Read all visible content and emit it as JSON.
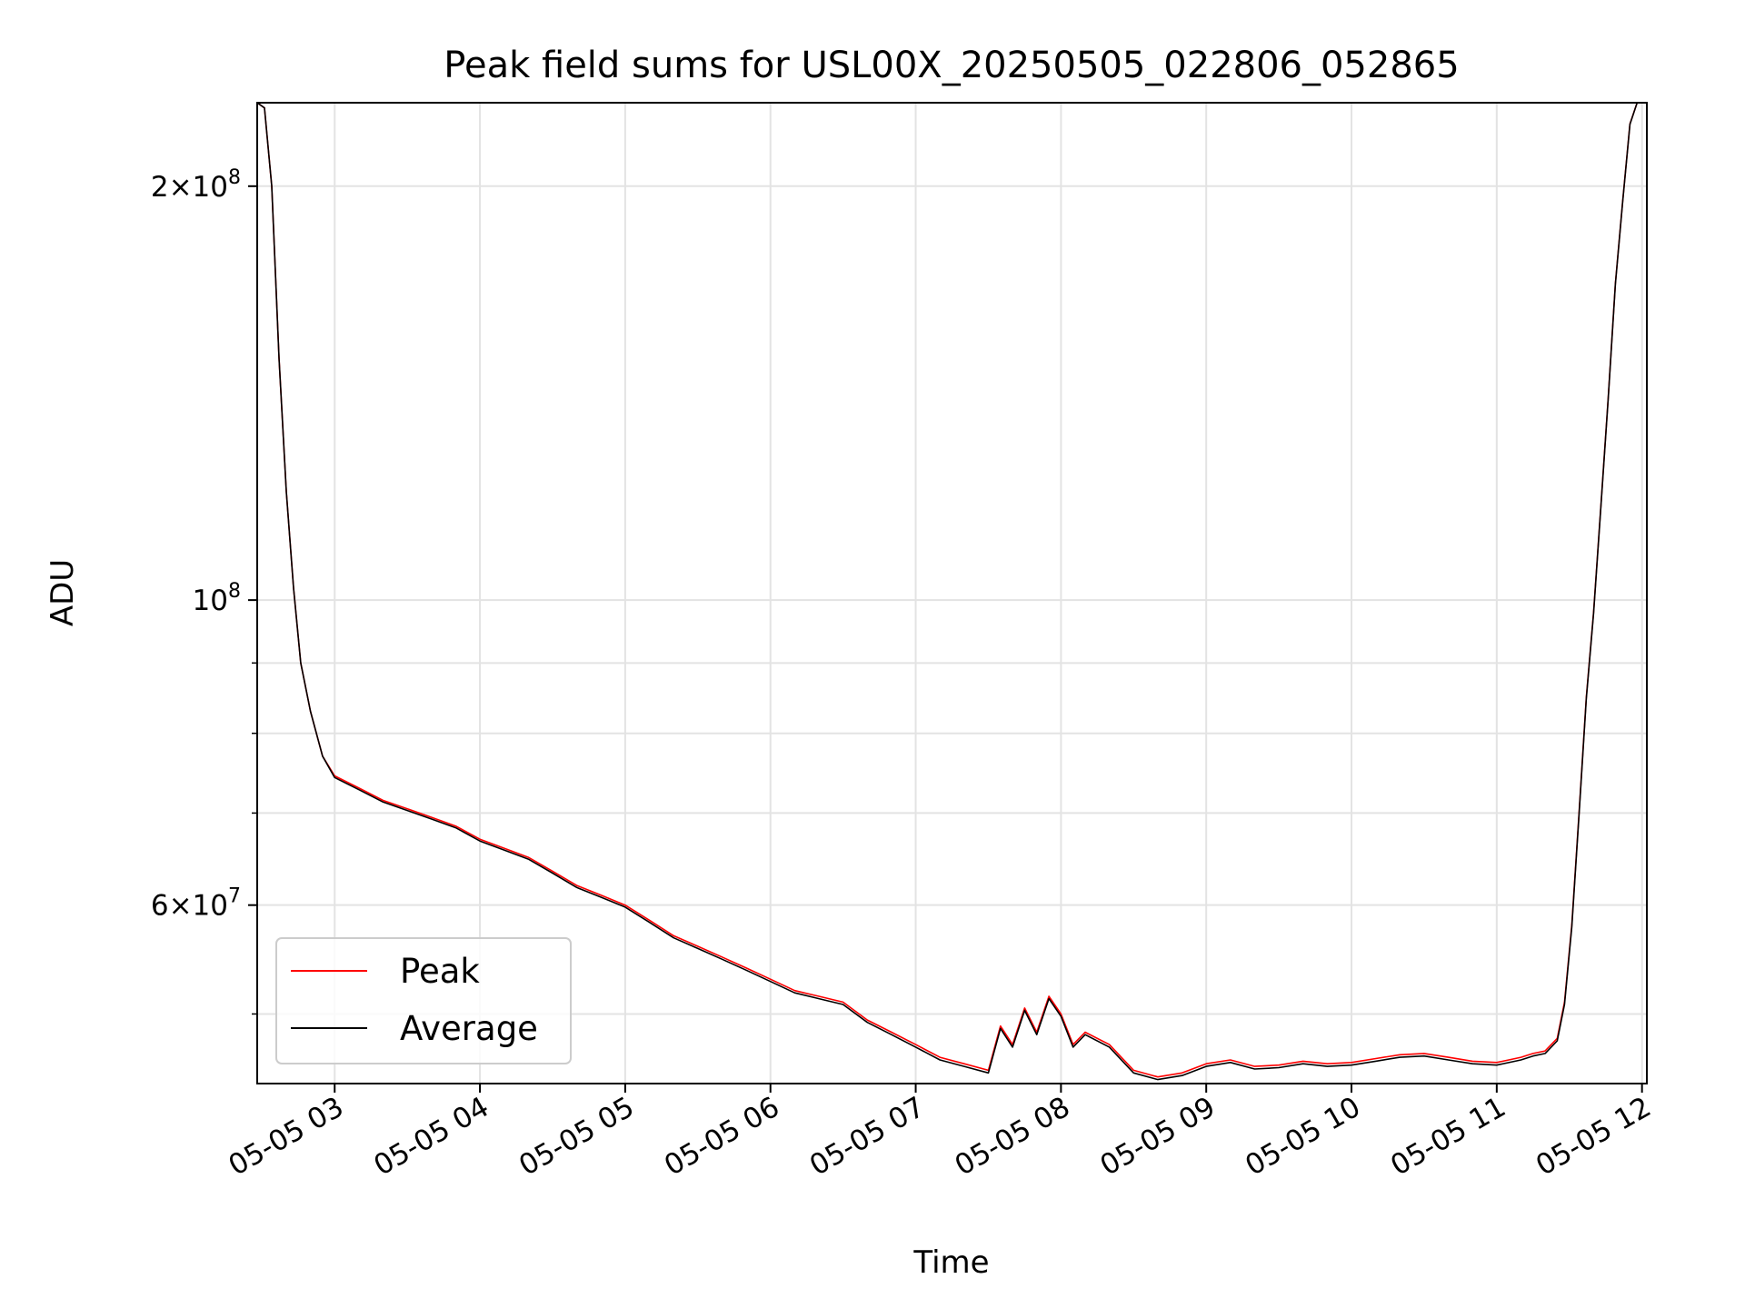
{
  "chart_data": {
    "type": "line",
    "title": "Peak field sums for USL00X_20250505_022806_052865",
    "xlabel": "Time",
    "ylabel": "ADU",
    "yscale": "log",
    "xlim": [
      "05-05 02:28",
      "05-05 12:02"
    ],
    "ylim": [
      44500000,
      230000000
    ],
    "grid": true,
    "legend_position": "lower-left",
    "x_ticks": [
      "05-05 03",
      "05-05 04",
      "05-05 05",
      "05-05 06",
      "05-05 07",
      "05-05 08",
      "05-05 09",
      "05-05 10",
      "05-05 11",
      "05-05 12"
    ],
    "y_ticks": [
      {
        "value": 60000000,
        "mantissa": "6",
        "base": "10",
        "exp": "7"
      },
      {
        "value": 100000000,
        "mantissa": "",
        "base": "10",
        "exp": "8"
      },
      {
        "value": 200000000,
        "mantissa": "2",
        "base": "10",
        "exp": "8"
      }
    ],
    "y_minor_ticks": [
      50000000,
      70000000,
      80000000,
      90000000
    ],
    "series": [
      {
        "name": "Peak",
        "color": "#ff0000",
        "x": [
          "05-05 02:28",
          "05-05 02:31",
          "05-05 02:34",
          "05-05 02:37",
          "05-05 02:40",
          "05-05 02:43",
          "05-05 02:46",
          "05-05 02:50",
          "05-05 02:55",
          "05-05 03:00",
          "05-05 03:10",
          "05-05 03:20",
          "05-05 03:30",
          "05-05 03:40",
          "05-05 03:50",
          "05-05 04:00",
          "05-05 04:10",
          "05-05 04:20",
          "05-05 04:30",
          "05-05 04:40",
          "05-05 04:50",
          "05-05 05:00",
          "05-05 05:10",
          "05-05 05:20",
          "05-05 05:30",
          "05-05 05:40",
          "05-05 05:50",
          "05-05 06:00",
          "05-05 06:10",
          "05-05 06:20",
          "05-05 06:30",
          "05-05 06:40",
          "05-05 06:50",
          "05-05 07:00",
          "05-05 07:10",
          "05-05 07:20",
          "05-05 07:30",
          "05-05 07:35",
          "05-05 07:40",
          "05-05 07:45",
          "05-05 07:50",
          "05-05 07:55",
          "05-05 08:00",
          "05-05 08:05",
          "05-05 08:10",
          "05-05 08:20",
          "05-05 08:30",
          "05-05 08:40",
          "05-05 08:50",
          "05-05 09:00",
          "05-05 09:10",
          "05-05 09:20",
          "05-05 09:30",
          "05-05 09:40",
          "05-05 09:50",
          "05-05 10:00",
          "05-05 10:10",
          "05-05 10:20",
          "05-05 10:30",
          "05-05 10:40",
          "05-05 10:50",
          "05-05 11:00",
          "05-05 11:10",
          "05-05 11:15",
          "05-05 11:20",
          "05-05 11:25",
          "05-05 11:28",
          "05-05 11:31",
          "05-05 11:34",
          "05-05 11:37",
          "05-05 11:40",
          "05-05 11:43",
          "05-05 11:46",
          "05-05 11:49",
          "05-05 11:52",
          "05-05 11:55",
          "05-05 11:58",
          "05-05 12:00"
        ],
        "y": [
          230000000,
          228000000,
          200000000,
          150000000,
          120000000,
          102000000,
          90000000,
          83000000,
          77000000,
          74500000,
          73000000,
          71500000,
          70500000,
          69500000,
          68500000,
          67000000,
          66000000,
          65000000,
          63500000,
          62000000,
          61000000,
          60000000,
          58500000,
          57000000,
          56000000,
          55000000,
          54000000,
          53000000,
          52000000,
          51500000,
          51000000,
          49500000,
          48500000,
          47500000,
          46500000,
          46000000,
          45500000,
          49000000,
          47500000,
          50500000,
          48500000,
          51500000,
          50000000,
          47500000,
          48500000,
          47500000,
          45500000,
          45000000,
          45300000,
          46000000,
          46300000,
          45800000,
          45900000,
          46200000,
          46000000,
          46100000,
          46400000,
          46700000,
          46800000,
          46500000,
          46200000,
          46100000,
          46500000,
          46800000,
          47000000,
          48000000,
          51000000,
          58000000,
          70000000,
          85000000,
          98000000,
          117000000,
          140000000,
          170000000,
          195000000,
          222000000,
          230000000,
          230000000
        ]
      },
      {
        "name": "Average",
        "color": "#000000",
        "x": [
          "05-05 02:28",
          "05-05 02:31",
          "05-05 02:34",
          "05-05 02:37",
          "05-05 02:40",
          "05-05 02:43",
          "05-05 02:46",
          "05-05 02:50",
          "05-05 02:55",
          "05-05 03:00",
          "05-05 03:10",
          "05-05 03:20",
          "05-05 03:30",
          "05-05 03:40",
          "05-05 03:50",
          "05-05 04:00",
          "05-05 04:10",
          "05-05 04:20",
          "05-05 04:30",
          "05-05 04:40",
          "05-05 04:50",
          "05-05 05:00",
          "05-05 05:10",
          "05-05 05:20",
          "05-05 05:30",
          "05-05 05:40",
          "05-05 05:50",
          "05-05 06:00",
          "05-05 06:10",
          "05-05 06:20",
          "05-05 06:30",
          "05-05 06:40",
          "05-05 06:50",
          "05-05 07:00",
          "05-05 07:10",
          "05-05 07:20",
          "05-05 07:30",
          "05-05 07:35",
          "05-05 07:40",
          "05-05 07:45",
          "05-05 07:50",
          "05-05 07:55",
          "05-05 08:00",
          "05-05 08:05",
          "05-05 08:10",
          "05-05 08:20",
          "05-05 08:30",
          "05-05 08:40",
          "05-05 08:50",
          "05-05 09:00",
          "05-05 09:10",
          "05-05 09:20",
          "05-05 09:30",
          "05-05 09:40",
          "05-05 09:50",
          "05-05 10:00",
          "05-05 10:10",
          "05-05 10:20",
          "05-05 10:30",
          "05-05 10:40",
          "05-05 10:50",
          "05-05 11:00",
          "05-05 11:10",
          "05-05 11:15",
          "05-05 11:20",
          "05-05 11:25",
          "05-05 11:28",
          "05-05 11:31",
          "05-05 11:34",
          "05-05 11:37",
          "05-05 11:40",
          "05-05 11:43",
          "05-05 11:46",
          "05-05 11:49",
          "05-05 11:52",
          "05-05 11:55",
          "05-05 11:58",
          "05-05 12:00"
        ],
        "y": [
          230000000,
          228000000,
          200000000,
          150000000,
          120000000,
          102000000,
          90000000,
          83000000,
          77000000,
          74300000,
          72800000,
          71300000,
          70300000,
          69300000,
          68300000,
          66800000,
          65800000,
          64800000,
          63300000,
          61800000,
          60800000,
          59800000,
          58300000,
          56800000,
          55800000,
          54800000,
          53800000,
          52800000,
          51800000,
          51300000,
          50800000,
          49300000,
          48300000,
          47300000,
          46300000,
          45800000,
          45300000,
          48800000,
          47300000,
          50300000,
          48300000,
          51300000,
          49800000,
          47300000,
          48300000,
          47300000,
          45300000,
          44800000,
          45100000,
          45800000,
          46100000,
          45600000,
          45700000,
          46000000,
          45800000,
          45900000,
          46200000,
          46500000,
          46600000,
          46300000,
          46000000,
          45900000,
          46300000,
          46600000,
          46800000,
          47800000,
          50800000,
          57800000,
          69800000,
          84800000,
          97800000,
          116800000,
          139800000,
          169800000,
          194800000,
          221800000,
          230000000,
          230000000
        ]
      }
    ]
  }
}
